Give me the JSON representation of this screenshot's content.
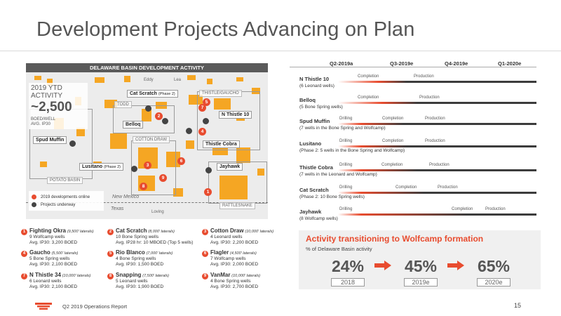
{
  "title": "Development Projects Advancing on Plan",
  "map": {
    "header": "DELAWARE BASIN DEVELOPMENT ACTIVITY",
    "ytd_line": "2019 YTD ACTIVITY",
    "ytd_approx": "~2,500",
    "ytd_unit1": "BOED/WELL",
    "ytd_unit2": "AVG. IP30",
    "areas": {
      "eddy": "Eddy",
      "lea": "Lea",
      "todd": "TODD",
      "thistle_gaucho": "THISTLE/GAUCHO",
      "cotton_draw": "COTTON DRAW",
      "potato_basin": "POTATO BASIN",
      "new_mexico": "New Mexico",
      "texas": "Texas",
      "loving": "Loving",
      "rattlesnake": "RATTLESNAKE"
    },
    "tags": {
      "cat_scratch": "Cat Scratch",
      "cat_scratch_phase": "(Phase 2)",
      "n_thistle_10": "N Thistle 10",
      "belloq": "Belloq",
      "spud_muffin": "Spud Muffin",
      "thistle_cobra": "Thistle Cobra",
      "lusitano": "Lusitano",
      "lusitano_phase": "(Phase 2)",
      "jayhawk": "Jayhawk"
    },
    "markers": [
      "1",
      "2",
      "3",
      "4",
      "5",
      "6",
      "7",
      "8",
      "9"
    ],
    "legend": {
      "online": "2019 developments online",
      "underway": "Projects underway"
    }
  },
  "projects": [
    {
      "num": "1",
      "name": "Fighting Okra",
      "detail": "(9,500' laterals)",
      "l1": "9 Wolfcamp wells",
      "l2": "Avg. IP30: 3,200 BOED"
    },
    {
      "num": "2",
      "name": "Cat Scratch",
      "detail": "(8,000' laterals)",
      "l1": "10 Bone Spring wells",
      "l2": "Avg. IP28 hr: 10 MBOED (Top 5 wells)"
    },
    {
      "num": "3",
      "name": "Cotton Draw",
      "detail": "(10,000' laterals)",
      "l1": "4 Leonard wells",
      "l2": "Avg. IP30: 2,200 BOED"
    },
    {
      "num": "4",
      "name": "Gaucho",
      "detail": "(5,500' laterals)",
      "l1": "5 Bone Spring wells",
      "l2": "Avg. IP30: 2,100 BOED"
    },
    {
      "num": "5",
      "name": "Rio Blanco",
      "detail": "(7,000' laterals)",
      "l1": "4 Bone Spring wells",
      "l2": "Avg. IP30: 1,500 BOED"
    },
    {
      "num": "6",
      "name": "Flagler",
      "detail": "(4,500' laterals)",
      "l1": "7 Wolfcamp wells",
      "l2": "Avg. IP30: 2,000 BOED"
    },
    {
      "num": "7",
      "name": "N Thistle 34",
      "detail": "(10,000' laterals)",
      "l1": "6 Leonard wells",
      "l2": "Avg. IP30: 2,100 BOED"
    },
    {
      "num": "8",
      "name": "Snapping",
      "detail": "(7,500' laterals)",
      "l1": "5 Leonard wells",
      "l2": "Avg. IP30: 1,900 BOED"
    },
    {
      "num": "9",
      "name": "VanMar",
      "detail": "(10,000' laterals)",
      "l1": "4 Bone Spring wells",
      "l2": "Avg. IP30: 2,700 BOED"
    }
  ],
  "timeline": {
    "quarters": [
      "Q2-2019a",
      "Q3-2019e",
      "Q4-2019e",
      "Q1-2020e"
    ],
    "rows": [
      {
        "name": "N Thistle 10",
        "sub": "(6 Leonard wells)",
        "labels": [
          "Completion",
          "Production"
        ]
      },
      {
        "name": "Belloq",
        "sub": "(5 Bone Spring wells)",
        "labels": [
          "Completion",
          "Production"
        ]
      },
      {
        "name": "Spud Muffin",
        "sub": "(7 wells in the Bone Spring and Wolfcamp)",
        "labels": [
          "Drilling",
          "Completion",
          "Production"
        ]
      },
      {
        "name": "Lusitano",
        "sub": "(Phase 2: 5 wells in the Bone Spring and Wolfcamp)",
        "labels": [
          "Drilling",
          "Completion",
          "Production"
        ]
      },
      {
        "name": "Thistle Cobra",
        "sub": "(7 wells in the Leonard and Wolfcamp)",
        "labels": [
          "Drilling",
          "Completion",
          "Production"
        ]
      },
      {
        "name": "Cat Scratch",
        "sub": "(Phase 2: 10 Bone Spring wells)",
        "labels": [
          "Drilling",
          "Completion",
          "Production"
        ]
      },
      {
        "name": "Jayhawk",
        "sub": "(8 Wolfcamp wells)",
        "labels": [
          "Drilling",
          "Completion",
          "Production"
        ]
      }
    ]
  },
  "wolfcamp": {
    "title": "Activity transitioning to Wolfcamp formation",
    "subtitle": "% of Delaware Basin activity",
    "steps": [
      {
        "pct": "24%",
        "year": "2018"
      },
      {
        "pct": "45%",
        "year": "2019e"
      },
      {
        "pct": "65%",
        "year": "2020e"
      }
    ]
  },
  "footer": {
    "text": "Q2 2019 Operations Report",
    "page": "15"
  },
  "colors": {
    "accent": "#e84c2f",
    "dark": "#3c3c3c",
    "acreage": "#f5a623"
  }
}
